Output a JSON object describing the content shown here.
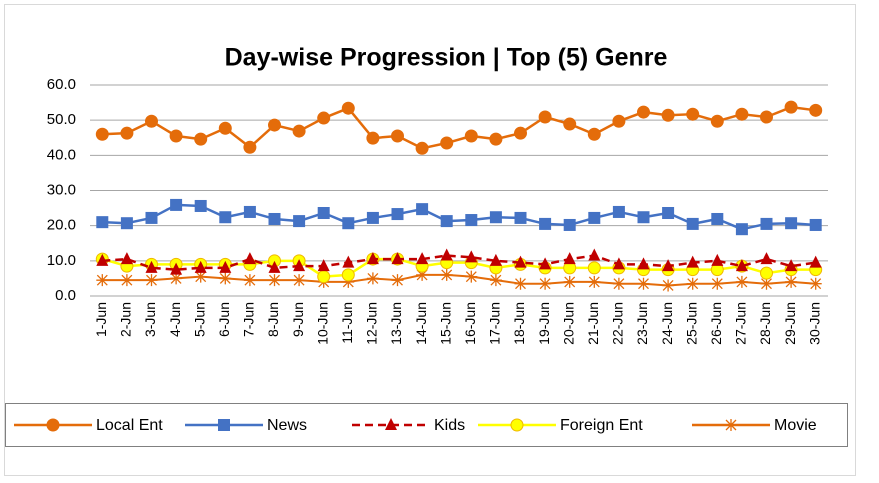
{
  "chart_data": {
    "type": "line",
    "title": "Day-wise Progression | Top (5) Genre",
    "categories": [
      "1-Jun",
      "2-Jun",
      "3-Jun",
      "4-Jun",
      "5-Jun",
      "6-Jun",
      "7-Jun",
      "8-Jun",
      "9-Jun",
      "10-Jun",
      "11-Jun",
      "12-Jun",
      "13-Jun",
      "14-Jun",
      "15-Jun",
      "16-Jun",
      "17-Jun",
      "18-Jun",
      "19-Jun",
      "20-Jun",
      "21-Jun",
      "22-Jun",
      "23-Jun",
      "24-Jun",
      "25-Jun",
      "26-Jun",
      "27-Jun",
      "28-Jun",
      "29-Jun",
      "30-Jun"
    ],
    "ylim": [
      0,
      60
    ],
    "yticks": [
      {
        "value": 0,
        "label": "0.0"
      },
      {
        "value": 10,
        "label": "10.0"
      },
      {
        "value": 20,
        "label": "20.0"
      },
      {
        "value": 30,
        "label": "30.0"
      },
      {
        "value": 40,
        "label": "40.0"
      },
      {
        "value": 50,
        "label": "50.0"
      },
      {
        "value": 60,
        "label": "60.0"
      }
    ],
    "grid": true,
    "legend": "bottom",
    "series": [
      {
        "name": "Local Ent",
        "color": "#E46C0A",
        "marker": "circle",
        "values": [
          46.0,
          46.3,
          49.7,
          45.5,
          44.6,
          47.7,
          42.3,
          48.6,
          46.9,
          50.6,
          53.4,
          44.9,
          45.5,
          42.0,
          43.5,
          45.5,
          44.6,
          46.3,
          50.9,
          48.9,
          46.0,
          49.7,
          52.3,
          51.4,
          51.7,
          49.7,
          51.7,
          50.9,
          53.7,
          52.8
        ]
      },
      {
        "name": "News",
        "color": "#4472C4",
        "marker": "square",
        "values": [
          21.0,
          20.7,
          22.2,
          25.9,
          25.6,
          22.4,
          23.9,
          21.9,
          21.3,
          23.6,
          20.7,
          22.2,
          23.3,
          24.7,
          21.3,
          21.6,
          22.4,
          22.2,
          20.5,
          20.2,
          22.2,
          23.9,
          22.4,
          23.6,
          20.5,
          21.9,
          19.0,
          20.5,
          20.7,
          20.2
        ]
      },
      {
        "name": "Kids",
        "color": "#C00000",
        "marker": "triangle",
        "dashed": true,
        "values": [
          10.0,
          10.5,
          8.0,
          7.5,
          8.0,
          8.0,
          10.5,
          8.0,
          8.5,
          8.5,
          9.5,
          10.5,
          10.5,
          10.5,
          11.5,
          11.0,
          10.0,
          9.5,
          9.0,
          10.5,
          11.5,
          9.0,
          9.0,
          8.5,
          9.5,
          10.0,
          8.5,
          10.5,
          8.5,
          9.5
        ]
      },
      {
        "name": "Foreign Ent",
        "color": "#FFFF00",
        "marker": "circle",
        "values": [
          10.5,
          8.5,
          9.0,
          9.0,
          9.0,
          9.0,
          9.0,
          10.0,
          10.0,
          5.5,
          6.0,
          10.5,
          10.5,
          8.5,
          9.5,
          9.5,
          8.0,
          9.0,
          8.0,
          8.0,
          8.0,
          8.0,
          7.5,
          7.5,
          7.5,
          7.5,
          8.5,
          6.5,
          7.5,
          7.5
        ]
      },
      {
        "name": "Movie",
        "color": "#E46C0A",
        "marker": "star",
        "values": [
          4.5,
          4.5,
          4.5,
          5.0,
          5.5,
          5.0,
          4.5,
          4.5,
          4.5,
          4.0,
          4.0,
          5.0,
          4.5,
          6.0,
          6.0,
          5.5,
          4.5,
          3.5,
          3.5,
          4.0,
          4.0,
          3.5,
          3.5,
          3.0,
          3.5,
          3.5,
          4.0,
          3.5,
          4.0,
          3.5
        ]
      }
    ]
  }
}
